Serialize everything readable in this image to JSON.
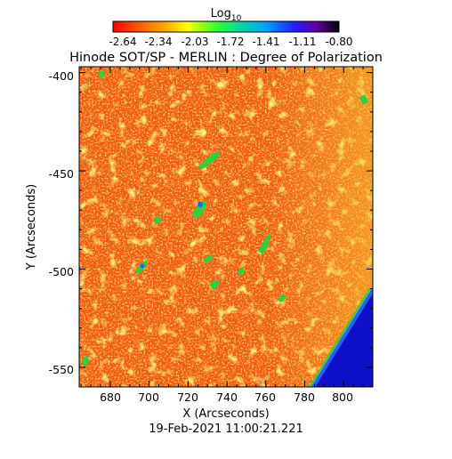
{
  "title": "Hinode SOT/SP - MERLIN : Degree of Polarization",
  "colorbar": {
    "label_base": "Log",
    "label_sub": "10",
    "ticks": [
      "-2.64",
      "-2.34",
      "-2.03",
      "-1.72",
      "-1.41",
      "-1.11",
      "-0.80"
    ]
  },
  "axes": {
    "xlabel": "X (Arcseconds)",
    "ylabel": "Y (Arcseconds)",
    "xlim": [
      664,
      815
    ],
    "ylim": [
      -560,
      -397
    ],
    "x_ticks": [
      "680",
      "700",
      "720",
      "740",
      "760",
      "780",
      "800"
    ],
    "y_ticks": [
      "-400",
      "-450",
      "-500",
      "-550"
    ]
  },
  "timestamp": "19-Feb-2021 11:00:21.221",
  "colors": {
    "map_base": "#f05a14",
    "map_speckle_light": "#fbb82a",
    "map_speckle_yellow": "#f4e034",
    "active_green": "#2fd03a",
    "active_blue": "#1e64ff",
    "off_limb_blue": "#1010c8"
  }
}
